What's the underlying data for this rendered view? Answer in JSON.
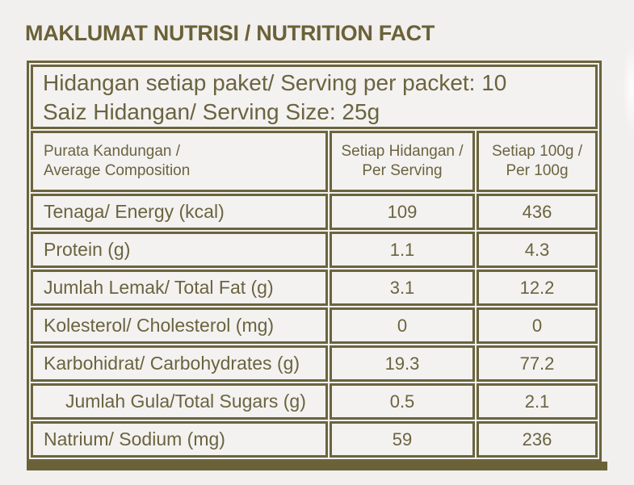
{
  "colors": {
    "accent_olive": "#6b643d",
    "title_olive": "#6b6138",
    "page_background": "#f1f0ee",
    "cell_background": "#f3f2f0"
  },
  "title": "MAKLUMAT NUTRISI / NUTRITION FACT",
  "serving_info": {
    "line1": "Hidangan setiap paket/ Serving per packet: 10",
    "line2": "Saiz Hidangan/ Serving Size: 25g"
  },
  "table": {
    "columns": [
      {
        "line1": "Purata Kandungan /",
        "line2": "Average Composition"
      },
      {
        "line1": "Setiap Hidangan /",
        "line2": "Per Serving"
      },
      {
        "line1": "Setiap 100g /",
        "line2": "Per 100g"
      }
    ],
    "rows": [
      {
        "label": "Tenaga/ Energy (kcal)",
        "per_serving": "109",
        "per_100g": "436",
        "indent": false
      },
      {
        "label": "Protein (g)",
        "per_serving": "1.1",
        "per_100g": "4.3",
        "indent": false
      },
      {
        "label": "Jumlah Lemak/ Total Fat (g)",
        "per_serving": "3.1",
        "per_100g": "12.2",
        "indent": false
      },
      {
        "label": "Kolesterol/ Cholesterol (mg)",
        "per_serving": "0",
        "per_100g": "0",
        "indent": false
      },
      {
        "label": "Karbohidrat/ Carbohydrates (g)",
        "per_serving": "19.3",
        "per_100g": "77.2",
        "indent": false
      },
      {
        "label": "Jumlah Gula/Total Sugars (g)",
        "per_serving": "0.5",
        "per_100g": "2.1",
        "indent": true
      },
      {
        "label": "Natrium/ Sodium (mg)",
        "per_serving": "59",
        "per_100g": "236",
        "indent": false
      }
    ]
  },
  "chart_data": {
    "type": "table",
    "title": "MAKLUMAT NUTRISI / NUTRITION FACT",
    "columns": [
      "Purata Kandungan / Average Composition",
      "Setiap Hidangan / Per Serving",
      "Setiap 100g / Per 100g"
    ],
    "rows": [
      [
        "Tenaga/ Energy (kcal)",
        109,
        436
      ],
      [
        "Protein (g)",
        1.1,
        4.3
      ],
      [
        "Jumlah Lemak/ Total Fat (g)",
        3.1,
        12.2
      ],
      [
        "Kolesterol/ Cholesterol (mg)",
        0,
        0
      ],
      [
        "Karbohidrat/ Carbohydrates (g)",
        19.3,
        77.2
      ],
      [
        "Jumlah Gula/Total Sugars (g)",
        0.5,
        2.1
      ],
      [
        "Natrium/ Sodium (mg)",
        59,
        236
      ]
    ],
    "serving_per_packet": 10,
    "serving_size": "25g"
  }
}
